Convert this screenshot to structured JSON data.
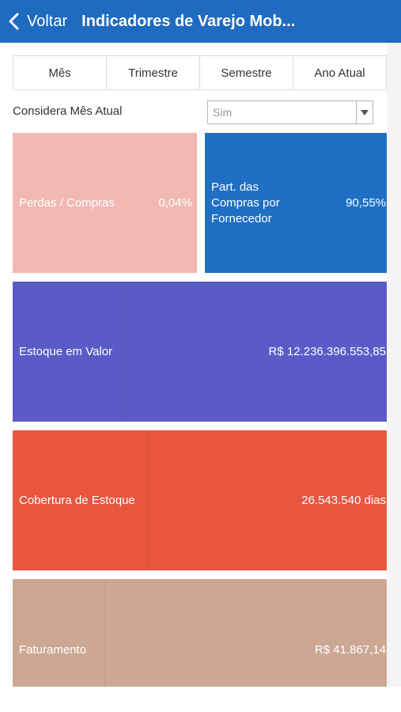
{
  "header": {
    "back_label": "Voltar",
    "title": "Indicadores de Varejo Mob..."
  },
  "tabs": [
    {
      "label": "Mês"
    },
    {
      "label": "Trimestre"
    },
    {
      "label": "Semestre"
    },
    {
      "label": "Ano Atual"
    }
  ],
  "filter": {
    "label": "Considera Mês Atual",
    "value": "Sim"
  },
  "tiles": {
    "perdas": {
      "label": "Perdas / Compras",
      "value": "0,04%",
      "color": "#f2b8b2"
    },
    "participacao": {
      "label_lines": [
        "Part. das",
        "Compras por",
        "Fornecedor"
      ],
      "value": "90,55%",
      "color": "#1f6fc5"
    },
    "estoque": {
      "label": "Estoque em Valor",
      "value": "R$ 12.236.396.553,85",
      "color": "#5b5bc8"
    },
    "cobertura": {
      "label": "Cobertura de Estoque",
      "value": "26.543.540 dias",
      "color": "#e85640"
    },
    "faturamento": {
      "label": "Faturamento",
      "value": "R$ 41.867,14",
      "color": "#cca894"
    }
  }
}
